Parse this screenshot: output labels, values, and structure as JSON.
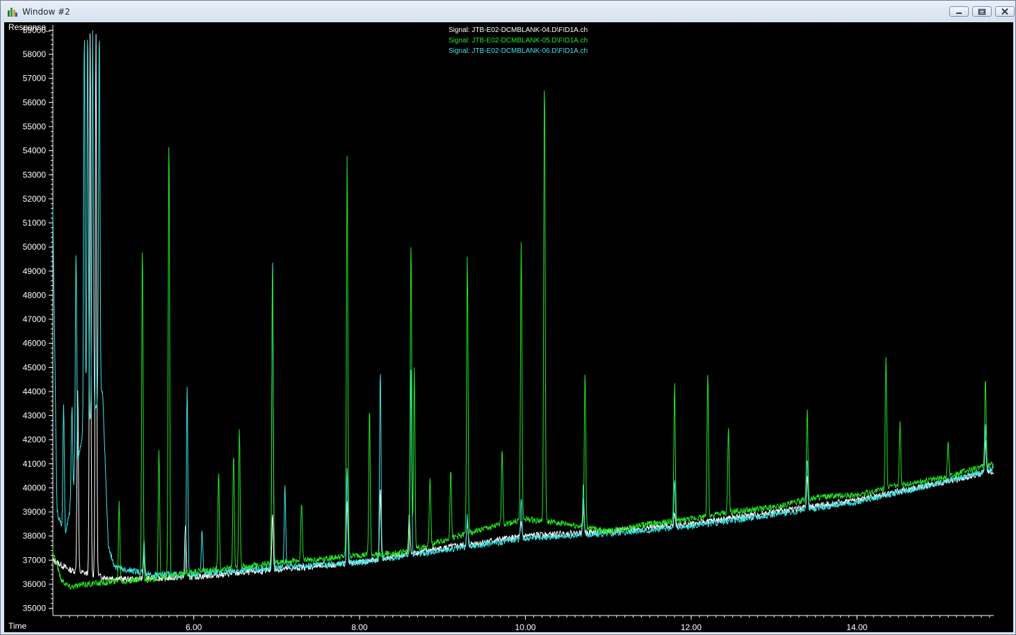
{
  "window": {
    "title": "Window #2"
  },
  "chart_data": {
    "type": "line",
    "xlabel": "Time",
    "ylabel": "Response_",
    "xlim": [
      4.3,
      15.65
    ],
    "ylim": [
      34700,
      59100
    ],
    "yticks": [
      35000,
      36000,
      37000,
      38000,
      39000,
      40000,
      41000,
      42000,
      43000,
      44000,
      45000,
      46000,
      47000,
      48000,
      49000,
      50000,
      51000,
      52000,
      53000,
      54000,
      55000,
      56000,
      57000,
      58000,
      59000
    ],
    "ytick_labels": [
      "35000",
      "36000",
      "37000",
      "38000",
      "39000",
      "40000",
      "41000",
      "42000",
      "43000",
      "44000",
      "45000",
      "46000",
      "47000",
      "48000",
      "49000",
      "50000",
      "51000",
      "52000",
      "53000",
      "54000",
      "55000",
      "56000",
      "57000",
      "58000",
      "59000"
    ],
    "xticks": [
      6,
      8,
      10,
      12,
      14
    ],
    "xtick_labels": [
      "6.00",
      "8.00",
      "10.00",
      "12.00",
      "14.00"
    ],
    "legend_placement": "top-center",
    "series": [
      {
        "name": "Signal: JTB-E02-DCMBLANK-04.D\\FID1A.ch",
        "color": "#ffffff",
        "baseline": [
          [
            4.3,
            37000
          ],
          [
            4.5,
            36600
          ],
          [
            4.9,
            36300
          ],
          [
            5.2,
            36200
          ],
          [
            6.0,
            36300
          ],
          [
            7.0,
            36600
          ],
          [
            8.0,
            36900
          ],
          [
            9.0,
            37500
          ],
          [
            10.0,
            38000
          ],
          [
            11.0,
            38200
          ],
          [
            12.0,
            38500
          ],
          [
            13.0,
            39000
          ],
          [
            14.0,
            39500
          ],
          [
            15.0,
            40200
          ],
          [
            15.65,
            40700
          ]
        ],
        "peaks": [
          [
            4.6,
            44000
          ],
          [
            4.75,
            59000
          ],
          [
            4.82,
            59000
          ],
          [
            5.4,
            37500
          ],
          [
            5.9,
            38500
          ],
          [
            6.95,
            39000
          ],
          [
            7.85,
            39500
          ],
          [
            8.25,
            40000
          ],
          [
            8.6,
            39000
          ],
          [
            9.3,
            38500
          ],
          [
            9.95,
            38500
          ],
          [
            10.2,
            38200
          ],
          [
            10.7,
            39500
          ],
          [
            11.8,
            39000
          ],
          [
            13.4,
            40500
          ],
          [
            15.55,
            42000
          ]
        ]
      },
      {
        "name": "Signal: JTB-E02-DCMBLANK-05.D\\FID1A.ch",
        "color": "#22e822",
        "baseline": [
          [
            4.3,
            37400
          ],
          [
            4.4,
            36200
          ],
          [
            4.5,
            35900
          ],
          [
            4.7,
            36000
          ],
          [
            5.0,
            36100
          ],
          [
            5.5,
            36200
          ],
          [
            6.0,
            36500
          ],
          [
            7.0,
            36900
          ],
          [
            8.0,
            37200
          ],
          [
            8.5,
            37300
          ],
          [
            9.0,
            37800
          ],
          [
            9.5,
            38300
          ],
          [
            10.0,
            38700
          ],
          [
            10.5,
            38500
          ],
          [
            11.0,
            38200
          ],
          [
            11.5,
            38500
          ],
          [
            12.0,
            38700
          ],
          [
            12.5,
            39000
          ],
          [
            13.0,
            39200
          ],
          [
            13.5,
            39600
          ],
          [
            14.0,
            39700
          ],
          [
            14.5,
            40100
          ],
          [
            15.0,
            40400
          ],
          [
            15.65,
            41000
          ]
        ],
        "peaks": [
          [
            5.1,
            39400
          ],
          [
            5.38,
            50000
          ],
          [
            5.58,
            41500
          ],
          [
            5.7,
            54600
          ],
          [
            6.3,
            40700
          ],
          [
            6.48,
            41500
          ],
          [
            6.55,
            42400
          ],
          [
            6.95,
            49300
          ],
          [
            7.3,
            39500
          ],
          [
            7.85,
            53700
          ],
          [
            8.12,
            43300
          ],
          [
            8.62,
            50200
          ],
          [
            8.66,
            45000
          ],
          [
            8.85,
            40500
          ],
          [
            9.1,
            40800
          ],
          [
            9.3,
            49700
          ],
          [
            9.72,
            41600
          ],
          [
            9.95,
            50300
          ],
          [
            10.23,
            57000
          ],
          [
            10.72,
            44800
          ],
          [
            11.8,
            44300
          ],
          [
            12.2,
            44800
          ],
          [
            12.45,
            42500
          ],
          [
            13.4,
            43300
          ],
          [
            14.35,
            45500
          ],
          [
            14.52,
            42800
          ],
          [
            15.1,
            41900
          ],
          [
            15.55,
            44600
          ]
        ]
      },
      {
        "name": "Signal: JTB-E02-DCMBLANK-06.D\\FID1A.ch",
        "color": "#3ee6e6",
        "baseline": [
          [
            4.3,
            51500
          ],
          [
            4.35,
            39000
          ],
          [
            4.45,
            38000
          ],
          [
            4.55,
            40000
          ],
          [
            4.65,
            42000
          ],
          [
            4.9,
            44000
          ],
          [
            4.97,
            37500
          ],
          [
            5.05,
            36700
          ],
          [
            5.5,
            36400
          ],
          [
            6.0,
            36400
          ],
          [
            7.0,
            36700
          ],
          [
            8.0,
            36900
          ],
          [
            9.0,
            37400
          ],
          [
            10.0,
            37900
          ],
          [
            11.0,
            38100
          ],
          [
            12.0,
            38400
          ],
          [
            13.0,
            38900
          ],
          [
            14.0,
            39400
          ],
          [
            15.0,
            40200
          ],
          [
            15.65,
            40800
          ]
        ],
        "peaks": [
          [
            4.43,
            43500
          ],
          [
            4.53,
            43300
          ],
          [
            4.58,
            49800
          ],
          [
            4.68,
            59000
          ],
          [
            4.72,
            59000
          ],
          [
            4.78,
            59000
          ],
          [
            4.86,
            59000
          ],
          [
            5.4,
            37800
          ],
          [
            5.92,
            44300
          ],
          [
            6.1,
            38300
          ],
          [
            6.95,
            49500
          ],
          [
            7.1,
            40100
          ],
          [
            7.85,
            40800
          ],
          [
            8.25,
            45000
          ],
          [
            8.62,
            45000
          ],
          [
            9.3,
            38800
          ],
          [
            9.95,
            39500
          ],
          [
            10.7,
            40200
          ],
          [
            11.8,
            40300
          ],
          [
            13.4,
            41200
          ],
          [
            15.55,
            42600
          ]
        ]
      }
    ]
  }
}
